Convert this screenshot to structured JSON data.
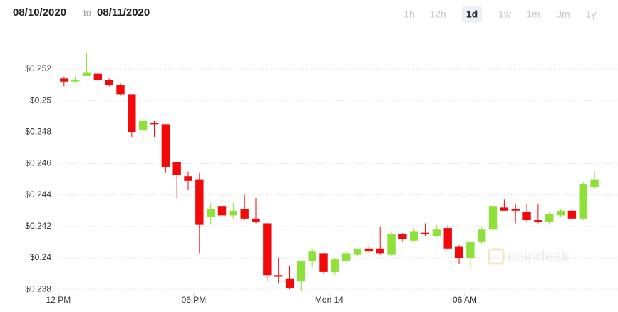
{
  "header": {
    "from": "08/10/2020",
    "to_word": "to",
    "to": "08/11/2020",
    "ranges": [
      "1h",
      "12h",
      "1d",
      "1w",
      "1m",
      "3m",
      "1y"
    ],
    "selected": "1d"
  },
  "chart_data": {
    "type": "candlestick",
    "watermark": "coindesk",
    "up_color": "#8ee03a",
    "down_color": "#f00a0a",
    "grid": true,
    "x": [
      0.25,
      0.75,
      1.25,
      1.75,
      2.25,
      2.75,
      3.25,
      3.75,
      4.25,
      4.75,
      5.25,
      5.75,
      6.25,
      6.75,
      7.25,
      7.75,
      8.25,
      8.75,
      9.25,
      9.75,
      10.25,
      10.75,
      11.25,
      11.75,
      12.25,
      12.75,
      13.25,
      13.75,
      14.25,
      14.75,
      15.25,
      15.75,
      16.25,
      16.75,
      17.25,
      17.75,
      18.25,
      18.75,
      19.25,
      19.75,
      20.25,
      20.75,
      21.25,
      21.75,
      22.25,
      22.75,
      23.25,
      23.75
    ],
    "open": [
      0.2514,
      0.2512,
      0.2516,
      0.2517,
      0.2513,
      0.251,
      0.2504,
      0.2481,
      0.2486,
      0.2485,
      0.2461,
      0.2452,
      0.245,
      0.2426,
      0.2433,
      0.2427,
      0.2431,
      0.2425,
      0.2422,
      0.2389,
      0.2387,
      0.2385,
      0.2398,
      0.2403,
      0.2391,
      0.2398,
      0.2402,
      0.2406,
      0.2406,
      0.2402,
      0.2415,
      0.2411,
      0.2416,
      0.2414,
      0.2419,
      0.2407,
      0.24,
      0.241,
      0.2418,
      0.2432,
      0.2431,
      0.2429,
      0.2424,
      0.2423,
      0.2427,
      0.243,
      0.2425,
      0.2445
    ],
    "high": [
      0.2515,
      0.2516,
      0.253,
      0.2518,
      0.2514,
      0.2511,
      0.2504,
      0.2487,
      0.2487,
      0.2485,
      0.2461,
      0.2455,
      0.2454,
      0.2435,
      0.2433,
      0.2435,
      0.244,
      0.2438,
      0.2422,
      0.24,
      0.2395,
      0.2398,
      0.2406,
      0.2403,
      0.24,
      0.2405,
      0.2406,
      0.2409,
      0.242,
      0.2417,
      0.2416,
      0.2419,
      0.2422,
      0.2421,
      0.2421,
      0.2408,
      0.241,
      0.242,
      0.2433,
      0.2437,
      0.2434,
      0.2434,
      0.2434,
      0.2429,
      0.2431,
      0.2433,
      0.2448,
      0.2456
    ],
    "low": [
      0.2509,
      0.2511,
      0.2516,
      0.2512,
      0.2509,
      0.2503,
      0.2477,
      0.2473,
      0.2477,
      0.2454,
      0.2438,
      0.2443,
      0.2403,
      0.2421,
      0.242,
      0.2425,
      0.2424,
      0.2422,
      0.2385,
      0.2384,
      0.238,
      0.2379,
      0.2394,
      0.239,
      0.2389,
      0.2396,
      0.2401,
      0.2402,
      0.2402,
      0.2401,
      0.241,
      0.241,
      0.2414,
      0.2413,
      0.2405,
      0.2396,
      0.2393,
      0.2409,
      0.2417,
      0.243,
      0.2422,
      0.2423,
      0.2422,
      0.2421,
      0.2426,
      0.2424,
      0.2424,
      0.2444
    ],
    "close": [
      0.2512,
      0.2513,
      0.2518,
      0.2513,
      0.251,
      0.2504,
      0.248,
      0.2487,
      0.2485,
      0.2458,
      0.2453,
      0.2449,
      0.2421,
      0.2431,
      0.2427,
      0.243,
      0.2425,
      0.2423,
      0.2389,
      0.2388,
      0.2381,
      0.2398,
      0.2404,
      0.2391,
      0.2399,
      0.2403,
      0.2406,
      0.2404,
      0.2403,
      0.2415,
      0.2412,
      0.2417,
      0.2415,
      0.2418,
      0.2406,
      0.24,
      0.241,
      0.2418,
      0.2433,
      0.243,
      0.243,
      0.2424,
      0.2423,
      0.2428,
      0.243,
      0.2425,
      0.2447,
      0.245
    ],
    "xlim": [
      -0.06,
      24.79
    ],
    "xticks": [
      {
        "value": 0,
        "label": "12 PM"
      },
      {
        "value": 6,
        "label": "06 PM"
      },
      {
        "value": 12,
        "label": "Mon 14"
      },
      {
        "value": 18,
        "label": "06 AM"
      }
    ],
    "ylim": [
      0.2376,
      0.253
    ],
    "yticks": [
      {
        "value": 0.238,
        "label": "$0.238"
      },
      {
        "value": 0.24,
        "label": "$0.24"
      },
      {
        "value": 0.242,
        "label": "$0.242"
      },
      {
        "value": 0.244,
        "label": "$0.244"
      },
      {
        "value": 0.246,
        "label": "$0.246"
      },
      {
        "value": 0.248,
        "label": "$0.248"
      },
      {
        "value": 0.25,
        "label": "$0.25"
      },
      {
        "value": 0.252,
        "label": "$0.252"
      }
    ]
  }
}
